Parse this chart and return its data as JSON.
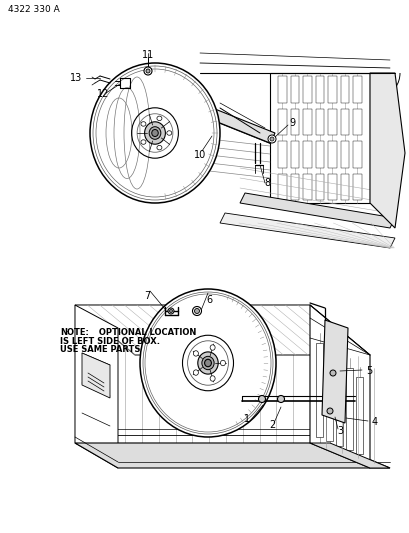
{
  "figure_id": "4322 330 A",
  "bg": "#ffffff",
  "lc": "#000000",
  "gray1": "#aaaaaa",
  "gray2": "#888888",
  "note_bold": "NOTE:",
  "note_rest": " OPTIONAL LOCATION\nIS LEFT SIDE OF BOX.\nUSE SAME PARTS",
  "fig_w": 4.1,
  "fig_h": 5.33,
  "dpi": 100
}
